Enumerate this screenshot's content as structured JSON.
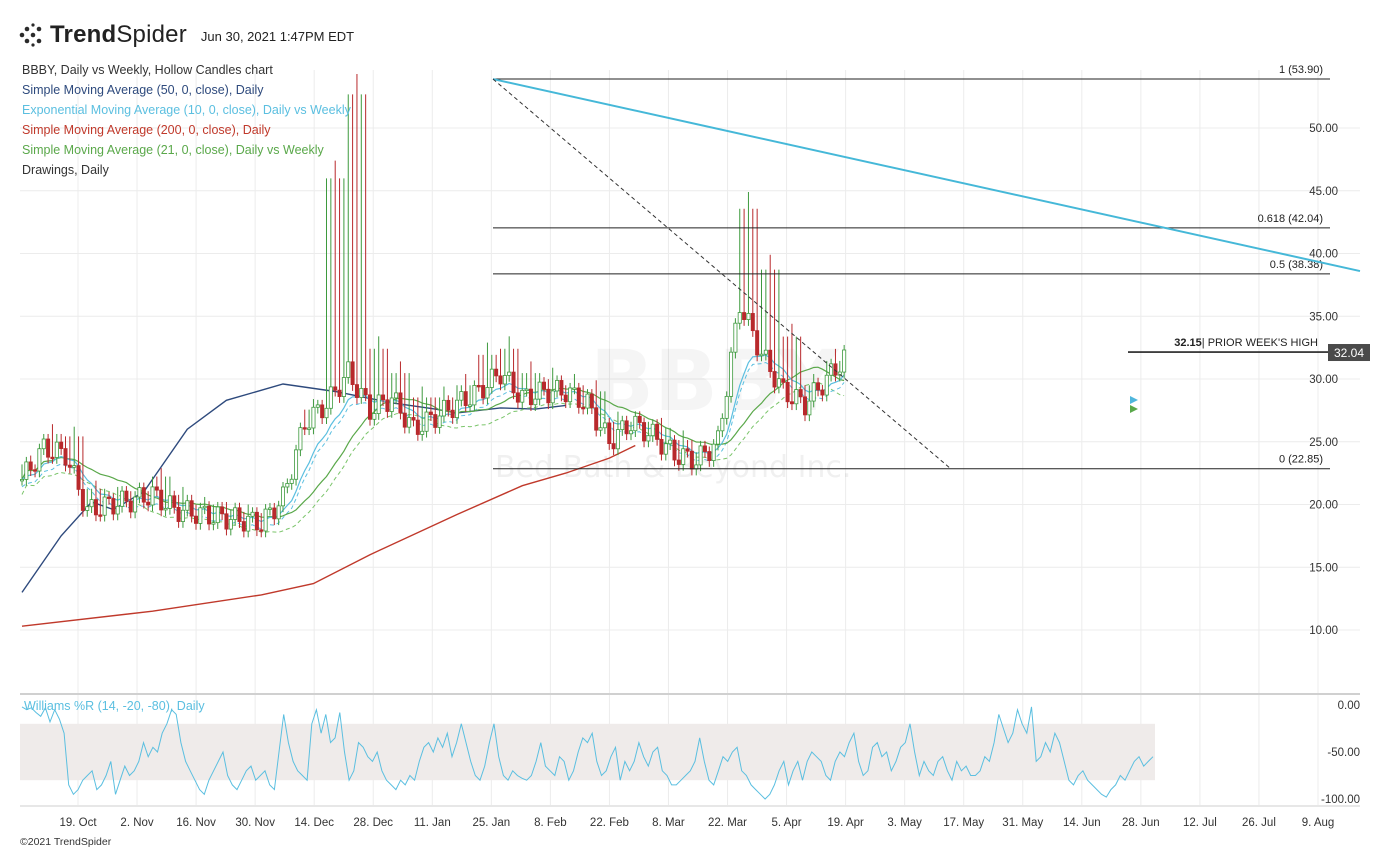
{
  "header": {
    "logo_light": "Trend",
    "logo_bold": "Spider",
    "timestamp": "Jun 30, 2021 1:47PM EDT"
  },
  "legend": {
    "title": "BBBY, Daily vs Weekly, Hollow Candles chart",
    "items": [
      {
        "label": "Simple Moving Average (50, 0, close), Daily",
        "color": "#2e4a7d"
      },
      {
        "label": "Exponential Moving Average (10, 0, close), Daily vs Weekly",
        "color": "#5bbfe0"
      },
      {
        "label": "Simple Moving Average (200, 0, close), Daily",
        "color": "#c0392b"
      },
      {
        "label": "Simple Moving Average (21, 0, close), Daily vs Weekly",
        "color": "#5aa84a"
      },
      {
        "label": "Drawings, Daily",
        "color": "#333333"
      }
    ]
  },
  "watermark": {
    "symbol": "BBBY",
    "name": "Bed Bath & Beyond Inc."
  },
  "footer": "©2021 TrendSpider",
  "annotations": {
    "prior_week_value": "32.15",
    "prior_week_text": "| PRIOR WEEK'S HIGH",
    "last_price": "32.04"
  },
  "chart_data": [
    {
      "type": "candlestick",
      "title": "BBBY, Daily vs Weekly, Hollow Candles chart",
      "ylim": [
        7,
        56
      ],
      "y_ticks": [
        "10.00",
        "15.00",
        "20.00",
        "25.00",
        "30.00",
        "35.00",
        "40.00",
        "45.00",
        "50.00"
      ],
      "x_ticks": [
        "19. Oct",
        "2. Nov",
        "16. Nov",
        "30. Nov",
        "14. Dec",
        "28. Dec",
        "11. Jan",
        "25. Jan",
        "8. Feb",
        "22. Feb",
        "8. Mar",
        "22. Mar",
        "5. Apr",
        "19. Apr",
        "3. May",
        "17. May",
        "31. May",
        "14. Jun",
        "28. Jun",
        "12. Jul",
        "26. Jul",
        "9. Aug"
      ],
      "grid": true,
      "price_series": {
        "name": "BBBY",
        "dates": [
          "2020-10-13",
          "2020-10-20",
          "2020-10-27",
          "2020-11-03",
          "2020-11-10",
          "2020-11-17",
          "2020-11-24",
          "2020-12-01",
          "2020-12-08",
          "2020-12-15",
          "2020-12-22",
          "2020-12-29",
          "2021-01-05",
          "2021-01-12",
          "2021-01-19",
          "2021-01-26",
          "2021-02-02",
          "2021-02-09",
          "2021-02-16",
          "2021-02-23",
          "2021-03-02",
          "2021-03-09",
          "2021-03-16",
          "2021-03-23",
          "2021-03-30",
          "2021-04-06",
          "2021-04-13",
          "2021-04-20",
          "2021-04-27",
          "2021-05-04",
          "2021-05-11",
          "2021-05-18",
          "2021-05-25",
          "2021-06-01",
          "2021-06-08",
          "2021-06-15",
          "2021-06-22",
          "2021-06-29",
          "2021-06-30"
        ],
        "close": [
          22.0,
          24.5,
          24.0,
          19.5,
          20.0,
          20.3,
          20.8,
          19.6,
          19.3,
          19.0,
          18.8,
          18.5,
          20.5,
          26.5,
          28.0,
          30.5,
          27.5,
          28.5,
          26.0,
          27.0,
          28.0,
          29.0,
          30.5,
          28.5,
          29.0,
          29.0,
          28.0,
          25.0,
          26.5,
          25.5,
          24.0,
          23.5,
          25.0,
          36.0,
          32.0,
          29.0,
          28.0,
          30.0,
          32.04
        ],
        "high": [
          23.5,
          26.0,
          25.8,
          21.5,
          21.0,
          21.3,
          22.5,
          21.0,
          20.2,
          19.8,
          19.6,
          19.5,
          22.0,
          28.0,
          47.0,
          53.9,
          33.0,
          31.0,
          29.0,
          29.0,
          30.0,
          32.5,
          33.0,
          31.0,
          30.5,
          30.0,
          29.5,
          27.0,
          27.0,
          26.5,
          25.5,
          24.5,
          26.5,
          44.5,
          39.5,
          34.0,
          30.0,
          32.0,
          39.2
        ]
      },
      "sma_50": {
        "start": 13.0,
        "points": [
          [
            0,
            13.0
          ],
          [
            9,
            17.5
          ],
          [
            16,
            20.2
          ],
          [
            21,
            19.6
          ],
          [
            28,
            21.0
          ],
          [
            38,
            26.0
          ],
          [
            47,
            28.3
          ],
          [
            60,
            29.6
          ],
          [
            72,
            29.0
          ],
          [
            85,
            28.1
          ],
          [
            95,
            27.6
          ],
          [
            100,
            27.3
          ],
          [
            110,
            27.7
          ],
          [
            118,
            27.6
          ],
          [
            125,
            27.9
          ]
        ]
      },
      "sma_200": {
        "points": [
          [
            0,
            10.3
          ],
          [
            30,
            11.5
          ],
          [
            55,
            12.8
          ],
          [
            67,
            13.7
          ],
          [
            80,
            16.0
          ],
          [
            100,
            19.2
          ],
          [
            115,
            21.5
          ],
          [
            125,
            22.5
          ],
          [
            135,
            23.7
          ],
          [
            141,
            24.7
          ]
        ]
      },
      "fib_levels": [
        {
          "label": "1 (53.90)",
          "value": 53.9
        },
        {
          "label": "0.618 (42.04)",
          "value": 42.04
        },
        {
          "label": "0.5 (38.38)",
          "value": 38.38
        },
        {
          "label": "0 (22.85)",
          "value": 22.85
        }
      ],
      "trendline": {
        "from": [
          "2021-01-27",
          53.9
        ],
        "to": [
          "2021-06-30",
          38.6
        ]
      },
      "dashed_line": {
        "from": [
          "2021-01-27",
          53.9
        ],
        "to": [
          "2021-05-18",
          22.9
        ]
      }
    },
    {
      "type": "line",
      "title": "Williams %R (14, -20, -80), Daily",
      "ylim": [
        -100,
        0
      ],
      "y_ticks": [
        "0.00",
        "-50.00",
        "-100.00"
      ],
      "band": [
        -20,
        -80
      ],
      "series": [
        {
          "name": "Williams %R (14, -20, -80), Daily",
          "values": [
            -2,
            -5,
            -3,
            -8,
            -12,
            -3,
            -18,
            -5,
            -15,
            -30,
            -85,
            -95,
            -90,
            -80,
            -75,
            -70,
            -90,
            -85,
            -75,
            -60,
            -95,
            -80,
            -65,
            -75,
            -70,
            -60,
            -40,
            -55,
            -45,
            -50,
            -30,
            -20,
            -5,
            -10,
            -40,
            -60,
            -70,
            -80,
            -90,
            -95,
            -80,
            -70,
            -60,
            -50,
            -75,
            -85,
            -90,
            -80,
            -70,
            -65,
            -80,
            -75,
            -70,
            -85,
            -90,
            -50,
            -10,
            -40,
            -60,
            -70,
            -75,
            -80,
            -20,
            -5,
            -30,
            -10,
            -40,
            -35,
            -8,
            -50,
            -80,
            -70,
            -40,
            -45,
            -55,
            -60,
            -50,
            -70,
            -80,
            -85,
            -90,
            -80,
            -85,
            -75,
            -80,
            -60,
            -45,
            -40,
            -50,
            -35,
            -45,
            -30,
            -55,
            -40,
            -20,
            -40,
            -60,
            -75,
            -80,
            -65,
            -40,
            -20,
            -55,
            -75,
            -80,
            -70,
            -75,
            -78,
            -80,
            -75,
            -60,
            -40,
            -65,
            -70,
            -75,
            -55,
            -60,
            -80,
            -70,
            -50,
            -35,
            -40,
            -30,
            -60,
            -75,
            -70,
            -55,
            -45,
            -80,
            -60,
            -70,
            -60,
            -40,
            -55,
            -65,
            -50,
            -45,
            -70,
            -75,
            -85,
            -85,
            -80,
            -75,
            -70,
            -60,
            -35,
            -60,
            -80,
            -85,
            -70,
            -55,
            -60,
            -50,
            -45,
            -70,
            -75,
            -85,
            -90,
            -95,
            -100,
            -95,
            -85,
            -70,
            -60,
            -85,
            -70,
            -60,
            -80,
            -60,
            -50,
            -55,
            -60,
            -75,
            -80,
            -60,
            -50,
            -55,
            -40,
            -30,
            -60,
            -75,
            -70,
            -45,
            -40,
            -55,
            -50,
            -70,
            -60,
            -45,
            -40,
            -20,
            -50,
            -75,
            -60,
            -70,
            -75,
            -60,
            -55,
            -70,
            -80,
            -60,
            -70,
            -65,
            -75,
            -75,
            -70,
            -55,
            -60,
            -40,
            -10,
            -25,
            -40,
            -30,
            -5,
            -20,
            -30,
            -2,
            -60,
            -55,
            -40,
            -50,
            -30,
            -40,
            -60,
            -80,
            -85,
            -75,
            -70,
            -80,
            -85,
            -90,
            -95,
            -98,
            -90,
            -85,
            -75,
            -80,
            -70,
            -60,
            -55,
            -65,
            -60,
            -55
          ]
        }
      ]
    }
  ]
}
